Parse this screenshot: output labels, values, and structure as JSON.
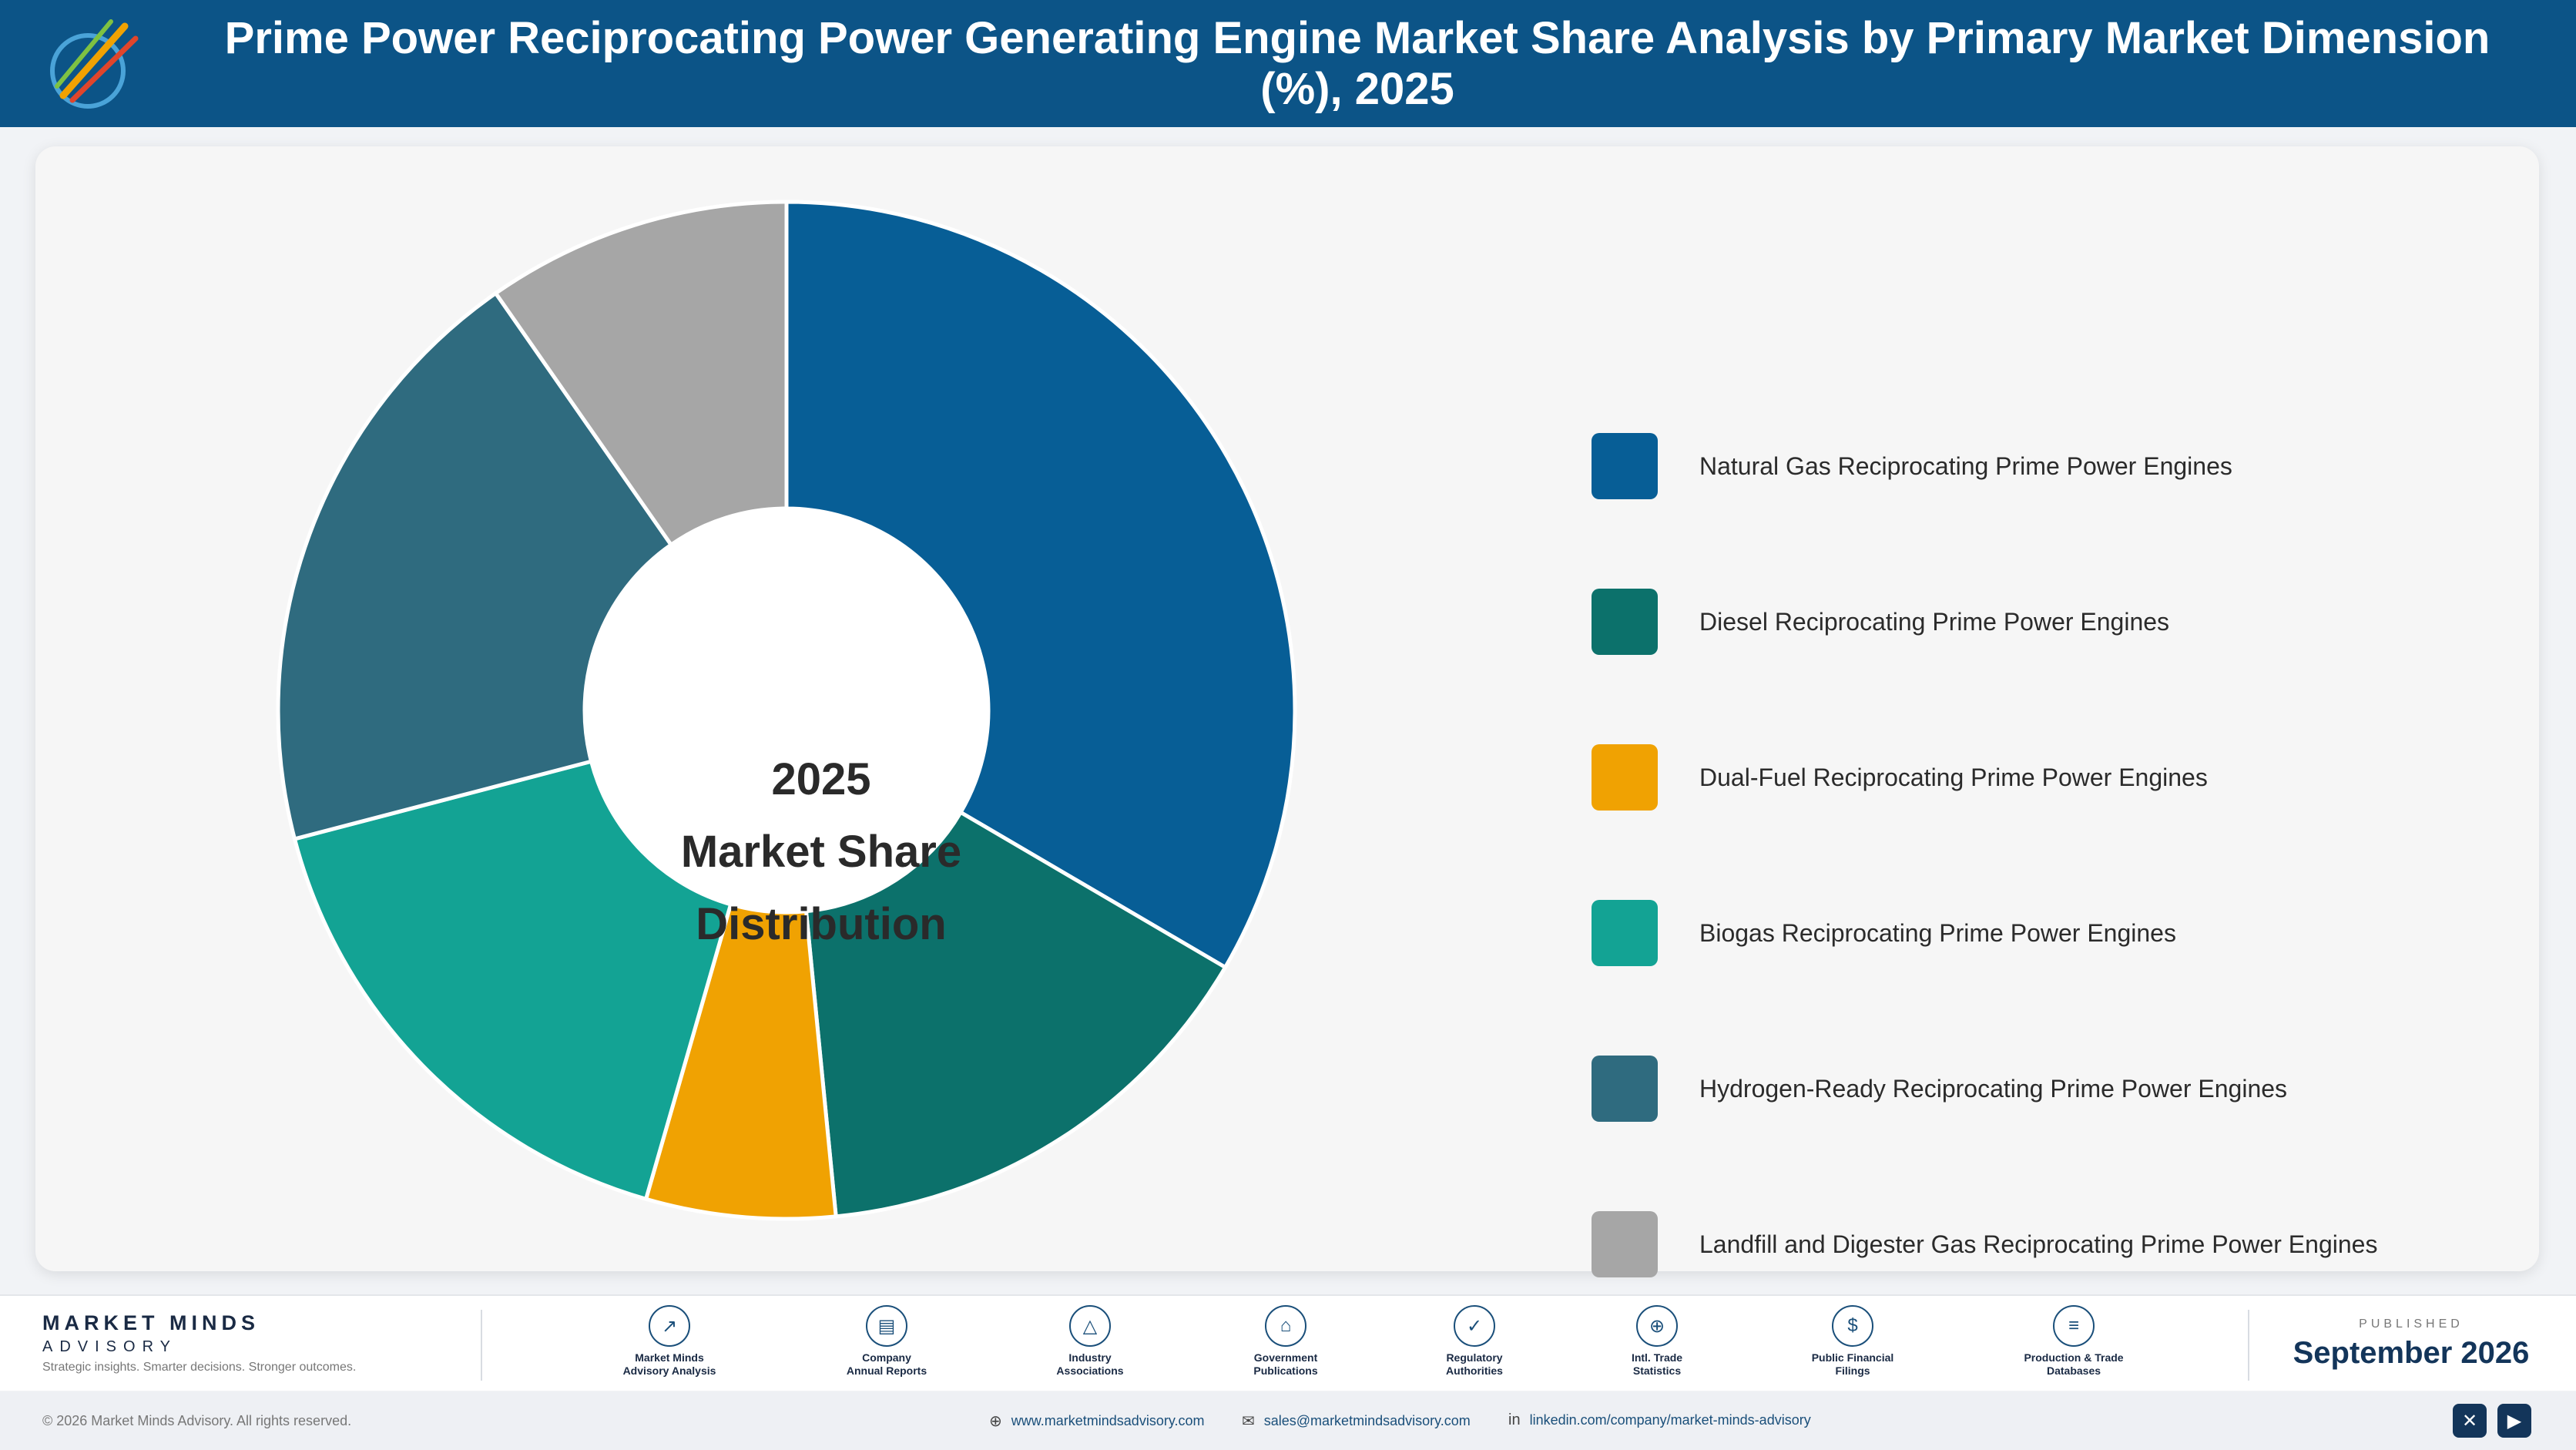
{
  "header": {
    "title": "Prime Power Reciprocating Power Generating Engine Market Share Analysis by Primary Market Dimension (%), 2025"
  },
  "chart_data": {
    "type": "pie",
    "donut": true,
    "center_label": [
      "2025",
      "Market Share",
      "Distribution"
    ],
    "categories": [
      "Natural Gas Reciprocating Prime Power Engines",
      "Diesel Reciprocating Prime Power Engines",
      "Dual-Fuel Reciprocating Prime Power Engines",
      "Biogas Reciprocating Prime Power Engines",
      "Hydrogen-Ready Reciprocating Prime Power Engines",
      "Landfill and Digester Gas Reciprocating Prime Power Engines"
    ],
    "values": [
      34.5,
      15.5,
      6.2,
      17.0,
      20.0,
      10.0
    ],
    "colors": [
      "#075e96",
      "#0c716b",
      "#f0a202",
      "#13a394",
      "#2f6b7f",
      "#a6a6a6"
    ],
    "legend_position": "right",
    "start_angle": "top, clockwise"
  },
  "footer": {
    "brand_name": "MARKET MINDS",
    "brand_sub": "ADVISORY",
    "tagline": "Strategic insights. Smarter decisions. Stronger outcomes.",
    "sources": [
      {
        "icon": "trend-chart-icon",
        "glyph": "↗",
        "label1": "Market Minds",
        "label2": "Advisory Analysis"
      },
      {
        "icon": "document-icon",
        "glyph": "▤",
        "label1": "Company",
        "label2": "Annual Reports"
      },
      {
        "icon": "network-icon",
        "glyph": "△",
        "label1": "Industry",
        "label2": "Associations"
      },
      {
        "icon": "government-building-icon",
        "glyph": "⌂",
        "label1": "Government",
        "label2": "Publications"
      },
      {
        "icon": "shield-icon",
        "glyph": "✓",
        "label1": "Regulatory",
        "label2": "Authorities"
      },
      {
        "icon": "globe-icon",
        "glyph": "⊕",
        "label1": "Intl. Trade",
        "label2": "Statistics"
      },
      {
        "icon": "dollar-icon",
        "glyph": "$",
        "label1": "Public Financial",
        "label2": "Filings"
      },
      {
        "icon": "database-icon",
        "glyph": "≡",
        "label1": "Production & Trade",
        "label2": "Databases"
      }
    ],
    "published_caption": "PUBLISHED",
    "published_date": "September 2026"
  },
  "bottombar": {
    "copyright": "© 2026 Market Minds Advisory. All rights reserved.",
    "website": "www.marketmindsadvisory.com",
    "email": "sales@marketmindsadvisory.com",
    "linkedin": "linkedin.com/company/market-minds-advisory",
    "social": [
      "x-icon",
      "youtube-icon"
    ]
  }
}
